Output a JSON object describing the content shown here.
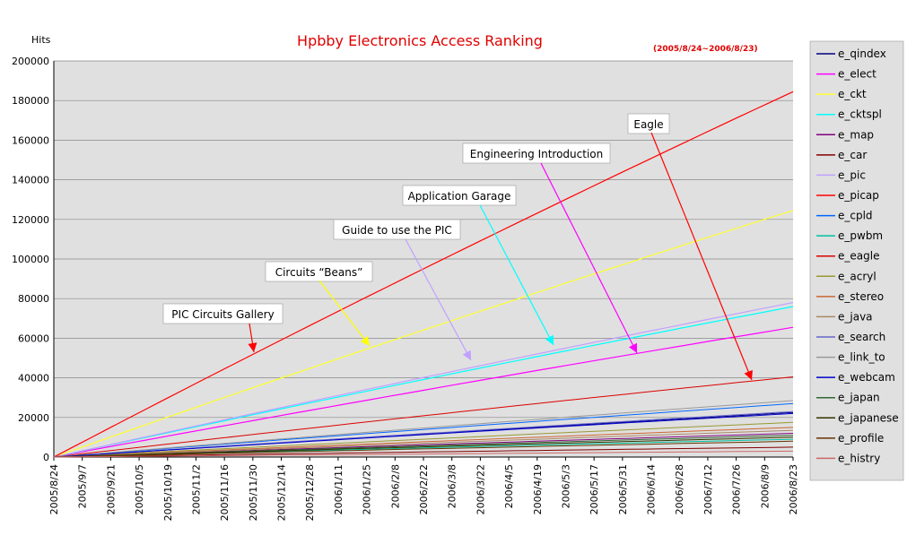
{
  "chart_data": {
    "type": "line",
    "title": "Hpbby Electronics Access Ranking",
    "subtitle": "(2005/8/24~2006/8/23)",
    "ylabel": "Hits",
    "xlabel": "",
    "ylim": [
      0,
      200000
    ],
    "yticks": [
      0,
      20000,
      40000,
      60000,
      80000,
      100000,
      120000,
      140000,
      160000,
      180000,
      200000
    ],
    "x_start": "2005/8/24",
    "x_end": "2006/8/23",
    "x_ticks": [
      "2005/8/24",
      "2005/9/7",
      "2005/9/21",
      "2005/10/5",
      "2005/10/19",
      "2005/11/2",
      "2005/11/16",
      "2005/11/30",
      "2005/12/14",
      "2005/12/28",
      "2006/1/11",
      "2006/1/25",
      "2006/2/8",
      "2006/2/22",
      "2006/3/8",
      "2006/3/22",
      "2006/4/5",
      "2006/4/19",
      "2006/5/3",
      "2006/5/17",
      "2006/5/31",
      "2006/6/14",
      "2006/6/28",
      "2006/7/12",
      "2006/7/26",
      "2006/8/9",
      "2006/8/23"
    ],
    "grid": "horizontal",
    "legend_position": "right",
    "series": [
      {
        "name": "e_qindex",
        "color": "#000080",
        "values": [
          0,
          22500
        ]
      },
      {
        "name": "e_elect",
        "color": "#ff00ff",
        "values": [
          0,
          65500
        ]
      },
      {
        "name": "e_ckt",
        "color": "#ffff33",
        "values": [
          0,
          124500
        ]
      },
      {
        "name": "e_cktspl",
        "color": "#00ffff",
        "values": [
          0,
          76000
        ]
      },
      {
        "name": "e_map",
        "color": "#800080",
        "values": [
          0,
          12000
        ]
      },
      {
        "name": "e_car",
        "color": "#800000",
        "values": [
          0,
          5000
        ]
      },
      {
        "name": "e_pic",
        "color": "#c0a0ff",
        "values": [
          0,
          78000
        ]
      },
      {
        "name": "e_picap",
        "color": "#ff0000",
        "values": [
          0,
          184500
        ]
      },
      {
        "name": "e_cpld",
        "color": "#0066ff",
        "values": [
          0,
          27000
        ]
      },
      {
        "name": "e_pwbm",
        "color": "#00c0a0",
        "values": [
          0,
          9000
        ]
      },
      {
        "name": "e_eagle",
        "color": "#dd0000",
        "values": [
          0,
          40500
        ]
      },
      {
        "name": "e_acryl",
        "color": "#999933",
        "values": [
          0,
          17500
        ]
      },
      {
        "name": "e_stereo",
        "color": "#cc6633",
        "values": [
          0,
          15000
        ]
      },
      {
        "name": "e_java",
        "color": "#aa8866",
        "values": [
          0,
          13500
        ]
      },
      {
        "name": "e_search",
        "color": "#6666cc",
        "values": [
          0,
          23000
        ]
      },
      {
        "name": "e_link_to",
        "color": "#999999",
        "values": [
          0,
          28500
        ]
      },
      {
        "name": "e_webcam",
        "color": "#0000cc",
        "values": [
          0,
          22000
        ]
      },
      {
        "name": "e_japan",
        "color": "#336633",
        "values": [
          0,
          11000
        ]
      },
      {
        "name": "e_japanese",
        "color": "#333300",
        "values": [
          0,
          10000
        ]
      },
      {
        "name": "e_profile",
        "color": "#663300",
        "values": [
          0,
          8000
        ]
      },
      {
        "name": "e_histry",
        "color": "#cc6666",
        "values": [
          0,
          3000
        ]
      }
    ],
    "annotations": [
      {
        "text": "PIC Circuits Gallery",
        "series": "e_picap",
        "color": "#ff0000"
      },
      {
        "text": "Circuits “Beans”",
        "series": "e_ckt",
        "color": "#ffff00"
      },
      {
        "text": "Guide to use the PIC",
        "series": "e_pic",
        "color": "#c0a0ff"
      },
      {
        "text": "Application Garage",
        "series": "e_cktspl",
        "color": "#00ffff"
      },
      {
        "text": "Engineering Introduction",
        "series": "e_elect",
        "color": "#ff00ff"
      },
      {
        "text": "Eagle",
        "series": "e_eagle",
        "color": "#ff0000"
      }
    ]
  }
}
